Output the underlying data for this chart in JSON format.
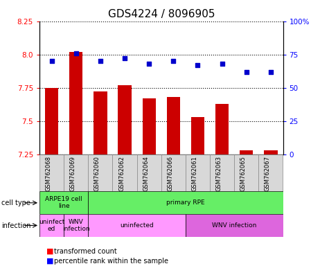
{
  "title": "GDS4224 / 8096905",
  "samples": [
    "GSM762068",
    "GSM762069",
    "GSM762060",
    "GSM762062",
    "GSM762064",
    "GSM762066",
    "GSM762061",
    "GSM762063",
    "GSM762065",
    "GSM762067"
  ],
  "transformed_counts": [
    7.75,
    8.02,
    7.72,
    7.77,
    7.67,
    7.68,
    7.53,
    7.63,
    7.28,
    7.28
  ],
  "percentile_ranks": [
    70,
    76,
    70,
    72,
    68,
    70,
    67,
    68,
    62,
    62
  ],
  "ylim_left": [
    7.25,
    8.25
  ],
  "ylim_right": [
    0,
    100
  ],
  "yticks_left": [
    7.25,
    7.5,
    7.75,
    8.0,
    8.25
  ],
  "yticks_right": [
    0,
    25,
    50,
    75,
    100
  ],
  "ytick_labels_right": [
    "0",
    "25",
    "50",
    "75",
    "100%"
  ],
  "bar_color": "#cc0000",
  "dot_color": "#0000cc",
  "cell_type_labels": [
    {
      "text": "ARPE19 cell\nline",
      "start": 0,
      "end": 2,
      "color": "#66ee66"
    },
    {
      "text": "primary RPE",
      "start": 2,
      "end": 10,
      "color": "#66ee66"
    }
  ],
  "infection_labels": [
    {
      "text": "uninfect\ned",
      "start": 0,
      "end": 1,
      "color": "#ff99ff"
    },
    {
      "text": "WNV\ninfection",
      "start": 1,
      "end": 2,
      "color": "#ff99ff"
    },
    {
      "text": "uninfected",
      "start": 2,
      "end": 6,
      "color": "#ff99ff"
    },
    {
      "text": "WNV infection",
      "start": 6,
      "end": 10,
      "color": "#dd66dd"
    }
  ],
  "title_fontsize": 11,
  "tick_fontsize": 7.5,
  "bar_width": 0.55
}
